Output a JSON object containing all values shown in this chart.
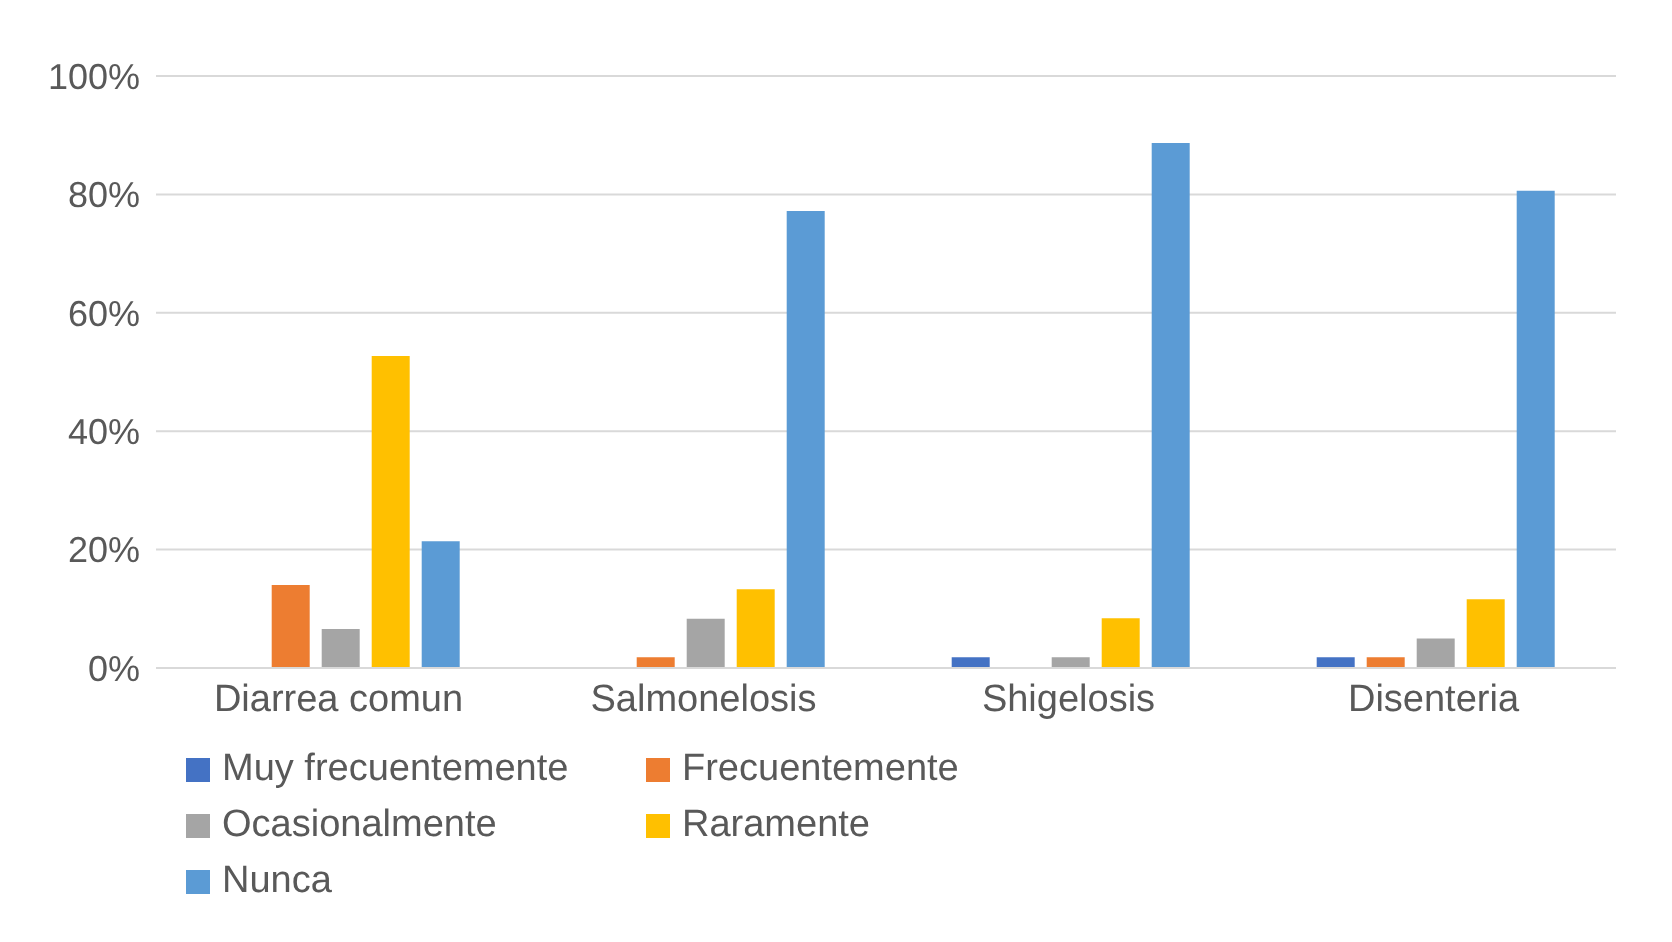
{
  "chart_data": {
    "type": "bar",
    "categories": [
      "Diarrea comun",
      "Salmonelosis",
      "Shigelosis",
      "Disenteria"
    ],
    "series": [
      {
        "name": "Muy frecuentemente",
        "color": "#4472c4",
        "values": [
          0,
          0,
          1.8,
          1.8
        ]
      },
      {
        "name": "Frecuentemente",
        "color": "#ed7d31",
        "values": [
          14,
          1.8,
          0,
          1.8
        ]
      },
      {
        "name": "Ocasionalmente",
        "color": "#a5a5a5",
        "values": [
          6.6,
          8.3,
          1.8,
          5
        ]
      },
      {
        "name": "Raramente",
        "color": "#ffc000",
        "values": [
          52.7,
          13.3,
          8.4,
          11.6
        ]
      },
      {
        "name": "Nunca",
        "color": "#5b9bd5",
        "values": [
          21.4,
          77.2,
          88.7,
          80.6
        ]
      }
    ],
    "ylim": [
      0,
      100
    ],
    "yticks": [
      {
        "value": 0,
        "label": "0%"
      },
      {
        "value": 20,
        "label": "20%"
      },
      {
        "value": 40,
        "label": "40%"
      },
      {
        "value": 60,
        "label": "60%"
      },
      {
        "value": 80,
        "label": "80%"
      },
      {
        "value": 100,
        "label": "100%"
      }
    ],
    "grid": "y",
    "legend": "bottom"
  }
}
